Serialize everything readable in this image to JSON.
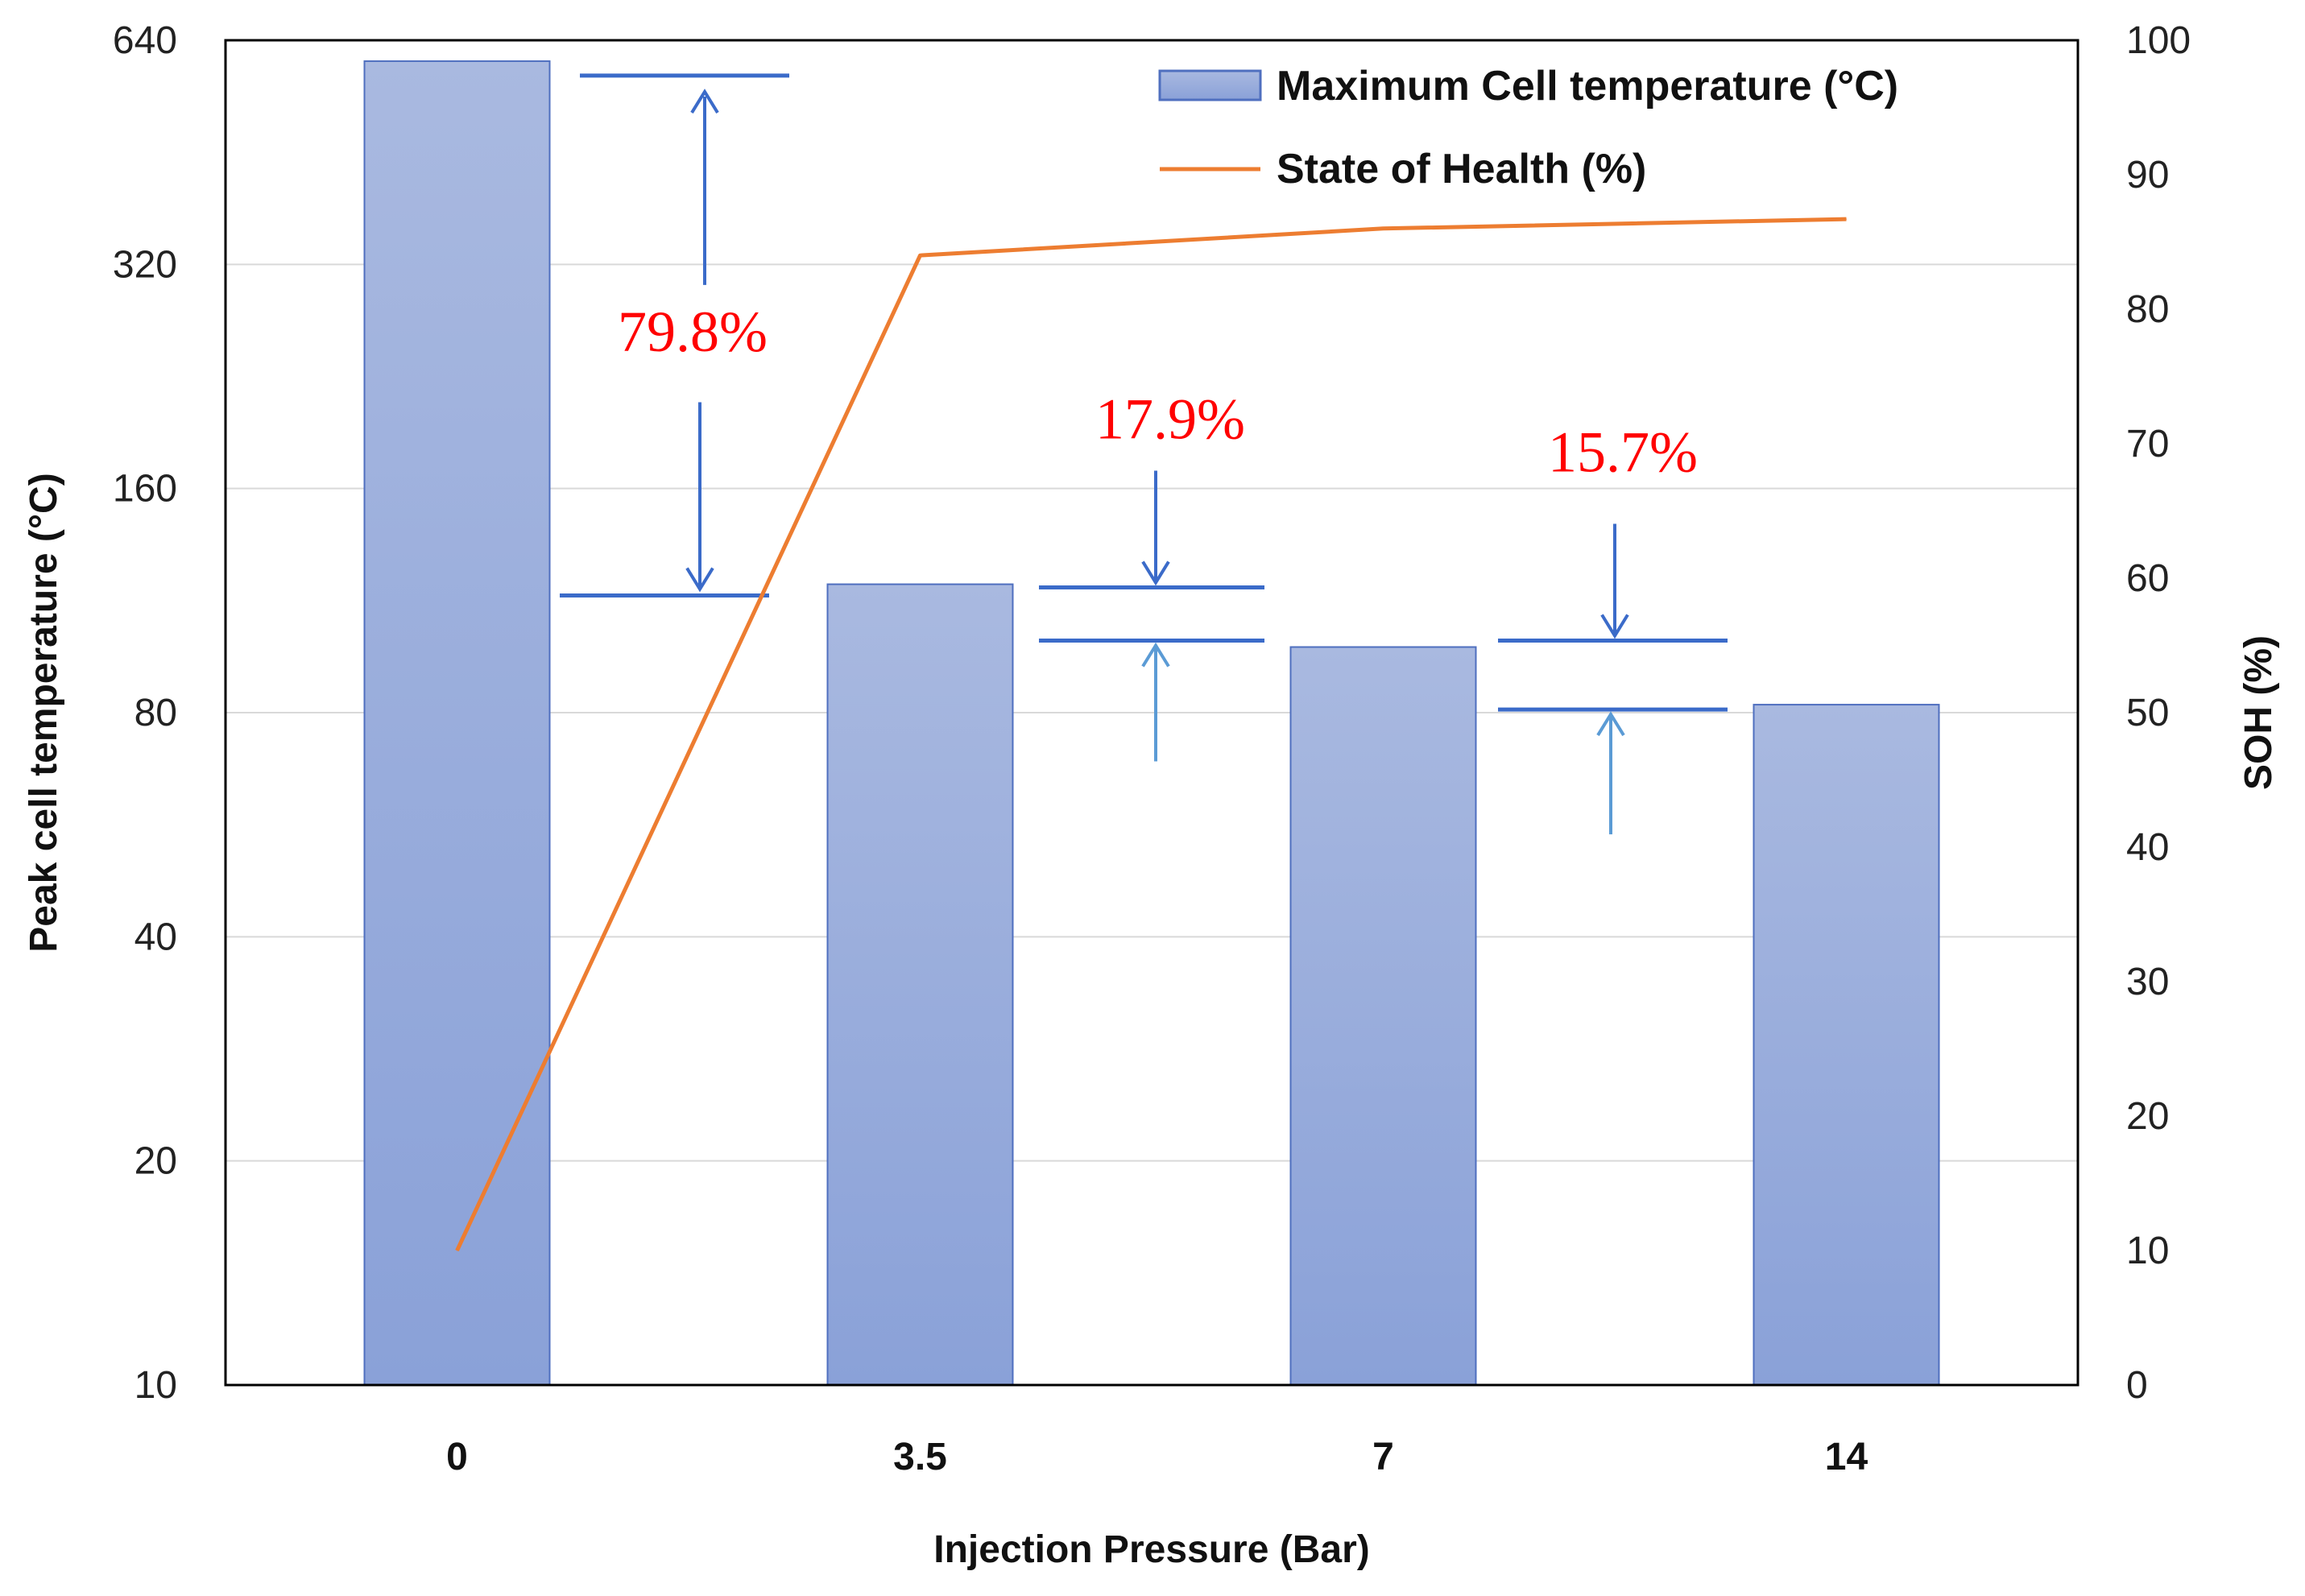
{
  "chart_data": {
    "type": "bar",
    "categories": [
      "0",
      "3.5",
      "7",
      "14"
    ],
    "xlabel": "Injection Pressure (Bar)",
    "y_left": {
      "label": "Peak cell temperature (°C)",
      "scale": "log2",
      "ticks": [
        10,
        20,
        40,
        80,
        160,
        320,
        640
      ],
      "range": [
        10,
        640
      ]
    },
    "y_right": {
      "label": "SOH (%)",
      "ticks": [
        0,
        10,
        20,
        30,
        40,
        50,
        60,
        70,
        80,
        90,
        100
      ],
      "range": [
        0,
        100
      ]
    },
    "series": [
      {
        "name": "Maximum Cell temperature (°C)",
        "type": "bar",
        "axis": "left",
        "values": [
          600,
          119,
          98,
          82
        ],
        "color": "#8ea5d8"
      },
      {
        "name": "State of Health (%)",
        "type": "line",
        "axis": "right",
        "values": [
          10,
          84,
          86,
          86.7
        ],
        "color": "#ed7d31"
      }
    ],
    "annotations": [
      {
        "text": "79.8%",
        "color": "#ff0000"
      },
      {
        "text": "17.9%",
        "color": "#ff0000"
      },
      {
        "text": "15.7%",
        "color": "#ff0000"
      }
    ],
    "legend": "top-right",
    "grid": true
  }
}
